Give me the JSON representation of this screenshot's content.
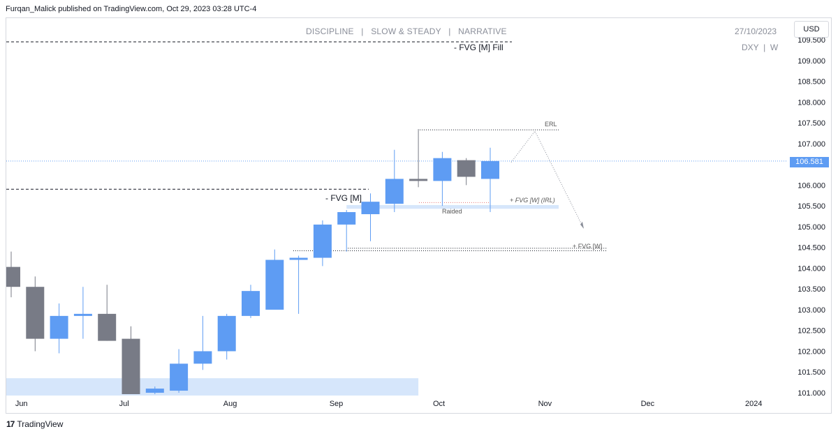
{
  "header": {
    "publisher": "Furqan_Malick published on TradingView.com, Oct 29, 2023 03:28 UTC-4"
  },
  "chart_header": {
    "title": "DISCIPLINE   |   SLOW & STEADY   |   NARRATIVE",
    "date": "27/10/2023",
    "symbol": "DXY  |  W",
    "currency_button": "USD"
  },
  "footer": {
    "brand": "TradingView",
    "brand_mark": "17"
  },
  "chart_data": {
    "type": "candlestick",
    "symbol": "DXY",
    "timeframe": "W",
    "ylim": [
      100.95,
      109.6
    ],
    "last_price": "106.581",
    "y_ticks": [
      "109.500",
      "109.000",
      "108.500",
      "108.000",
      "107.500",
      "107.000",
      "106.500",
      "106.000",
      "105.500",
      "105.000",
      "104.500",
      "104.000",
      "103.500",
      "103.000",
      "102.500",
      "102.000",
      "101.500",
      "101.000"
    ],
    "x_ticks": [
      "Jun",
      "Jul",
      "Aug",
      "Sep",
      "Oct",
      "Nov",
      "Dec",
      "2024"
    ],
    "candles": [
      {
        "date": "2023-05-29",
        "open": 104.03,
        "high": 104.4,
        "low": 103.3,
        "close": 103.55
      },
      {
        "date": "2023-06-05",
        "open": 103.55,
        "high": 103.8,
        "low": 102.0,
        "close": 102.3
      },
      {
        "date": "2023-06-12",
        "open": 102.3,
        "high": 103.15,
        "low": 101.95,
        "close": 102.85
      },
      {
        "date": "2023-06-19",
        "open": 102.85,
        "high": 103.55,
        "low": 102.3,
        "close": 102.9
      },
      {
        "date": "2023-06-26",
        "open": 102.9,
        "high": 103.6,
        "low": 102.25,
        "close": 102.25
      },
      {
        "date": "2023-07-03",
        "open": 102.3,
        "high": 102.6,
        "low": 100.9,
        "close": 100.95
      },
      {
        "date": "2023-07-10",
        "open": 101.0,
        "high": 101.15,
        "low": 100.95,
        "close": 101.1
      },
      {
        "date": "2023-07-17",
        "open": 101.05,
        "high": 102.05,
        "low": 101.0,
        "close": 101.7
      },
      {
        "date": "2023-07-24",
        "open": 101.7,
        "high": 102.85,
        "low": 101.55,
        "close": 102.0
      },
      {
        "date": "2023-07-31",
        "open": 102.0,
        "high": 102.9,
        "low": 101.8,
        "close": 102.85
      },
      {
        "date": "2023-08-07",
        "open": 102.85,
        "high": 103.6,
        "low": 102.8,
        "close": 103.45
      },
      {
        "date": "2023-08-14",
        "open": 103.0,
        "high": 104.45,
        "low": 103.05,
        "close": 104.2
      },
      {
        "date": "2023-08-21",
        "open": 104.2,
        "high": 104.3,
        "low": 102.9,
        "close": 104.25
      },
      {
        "date": "2023-08-28",
        "open": 104.25,
        "high": 105.15,
        "low": 104.05,
        "close": 105.05
      },
      {
        "date": "2023-09-04",
        "open": 105.05,
        "high": 105.4,
        "low": 104.4,
        "close": 105.35
      },
      {
        "date": "2023-09-11",
        "open": 105.3,
        "high": 105.8,
        "low": 104.65,
        "close": 105.6
      },
      {
        "date": "2023-09-18",
        "open": 105.55,
        "high": 106.85,
        "low": 105.35,
        "close": 106.15
      },
      {
        "date": "2023-09-25",
        "open": 106.15,
        "high": 107.35,
        "low": 105.95,
        "close": 106.1
      },
      {
        "date": "2023-10-02",
        "open": 106.1,
        "high": 106.8,
        "low": 105.5,
        "close": 106.65
      },
      {
        "date": "2023-10-09",
        "open": 106.6,
        "high": 106.65,
        "low": 106.0,
        "close": 106.2
      },
      {
        "date": "2023-10-16",
        "open": 106.15,
        "high": 106.9,
        "low": 105.35,
        "close": 106.58
      }
    ],
    "colors": {
      "up": "#5e9cf3",
      "down": "#787b86",
      "zone": "#d6e6fb"
    },
    "annotations": {
      "fvg_m_fill": "- FVG [M] Fill",
      "fvg_m": "- FVG [M]",
      "fvg_w_irl": "+ FVG [W] (IRL)",
      "raided": "Raided",
      "erl": "ERL",
      "fvg_w": "+ FVG [W]"
    }
  }
}
